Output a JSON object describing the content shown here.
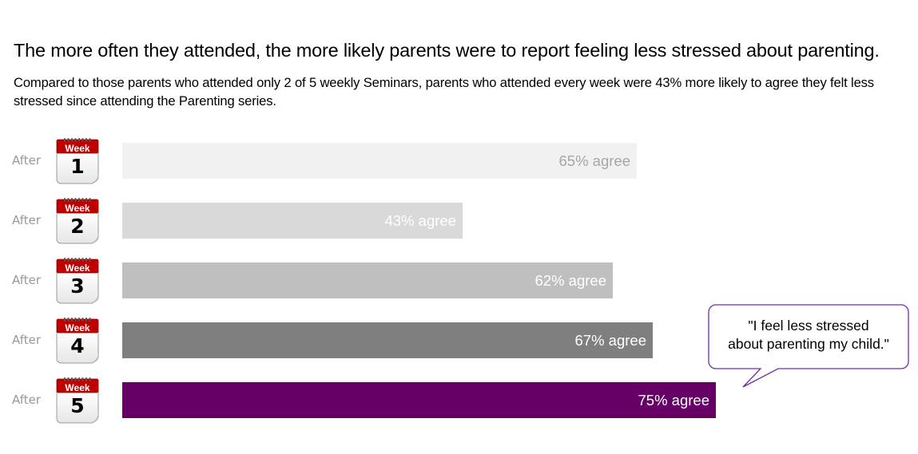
{
  "title": "The more often they attended, the more likely parents were to report feeling less stressed about parenting.",
  "subtitle": "Compared to those parents who attended only 2 of 5 weekly Seminars, parents who attended every week were 43% more likely to agree they felt less stressed since attending the Parenting series.",
  "colors": {
    "bar_colors": [
      "#f1f1f1",
      "#d9d9d9",
      "#bfbfbf",
      "#7f7f7f",
      "#660066"
    ],
    "label_colors": [
      "#a6a6a6",
      "#ffffff",
      "#ffffff",
      "#ffffff",
      "#ffffff"
    ],
    "accent": "#660066",
    "calendar_red": "#c00000"
  },
  "rows": [
    {
      "label": "After",
      "icon": "week-calendar-icon",
      "week_word": "Week",
      "week_num": "1"
    },
    {
      "label": "After",
      "icon": "week-calendar-icon",
      "week_word": "Week",
      "week_num": "2"
    },
    {
      "label": "After",
      "icon": "week-calendar-icon",
      "week_word": "Week",
      "week_num": "3"
    },
    {
      "label": "After",
      "icon": "week-calendar-icon",
      "week_word": "Week",
      "week_num": "4"
    },
    {
      "label": "After",
      "icon": "week-calendar-icon",
      "week_word": "Week",
      "week_num": "5"
    }
  ],
  "chart_data": {
    "type": "bar",
    "orientation": "horizontal",
    "categories": [
      "After Week 1",
      "After Week 2",
      "After Week 3",
      "After Week 4",
      "After Week 5"
    ],
    "values": [
      65,
      43,
      62,
      67,
      75
    ],
    "unit": "%",
    "data_labels": [
      "65% agree",
      "43% agree",
      "62% agree",
      "67% agree",
      "75% agree"
    ],
    "xlim": [
      0,
      100
    ],
    "grid": false,
    "legend": "none"
  },
  "callout": {
    "text_line1": "\"I feel less stressed",
    "text_line2": "about parenting my child.\""
  }
}
